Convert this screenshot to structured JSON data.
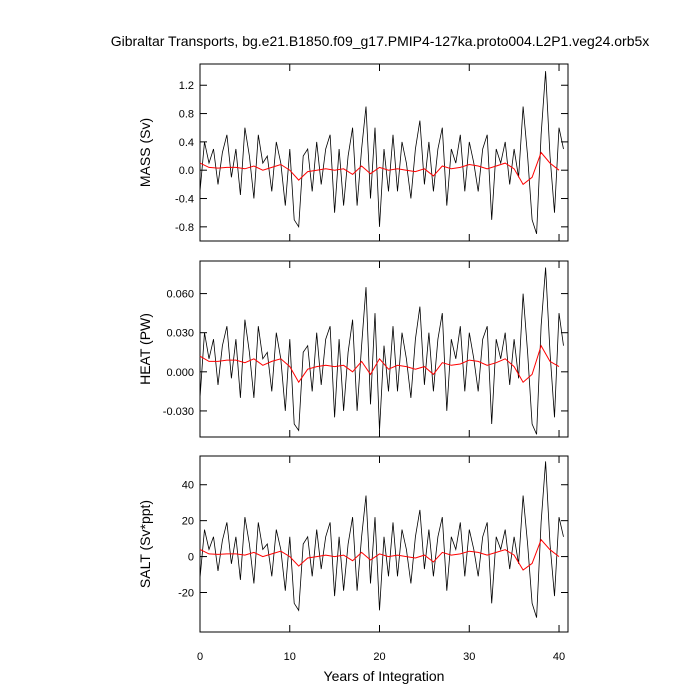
{
  "chart_data": {
    "title": "Gibraltar Transports, bg.e21.B1850.f09_g17.PMIP4-127ka.proto004.L2P1.veg24.orb5x",
    "type": "line",
    "xlabel": "Years of Integration",
    "xlim": [
      0,
      41
    ],
    "xticks": [
      "0",
      "10",
      "20",
      "30",
      "40"
    ],
    "colors": {
      "raw": "#000000",
      "smoothed": "#ff0000"
    },
    "panels": [
      {
        "ylabel": "MASS (Sv)",
        "ylim": [
          -1.0,
          1.5
        ],
        "yticks": [
          "1.2",
          "0.8",
          "0.4",
          "0.0",
          "-0.4",
          "-0.8"
        ],
        "x": [
          0,
          0.5,
          1,
          1.5,
          2,
          2.5,
          3,
          3.5,
          4,
          4.5,
          5,
          5.5,
          6,
          6.5,
          7,
          7.5,
          8,
          8.5,
          9,
          9.5,
          10,
          10.5,
          11,
          11.5,
          12,
          12.5,
          13,
          13.5,
          14,
          14.5,
          15,
          15.5,
          16,
          16.5,
          17,
          17.5,
          18,
          18.5,
          19,
          19.5,
          20,
          20.5,
          21,
          21.5,
          22,
          22.5,
          23,
          23.5,
          24,
          24.5,
          25,
          25.5,
          26,
          26.5,
          27,
          27.5,
          28,
          28.5,
          29,
          29.5,
          30,
          30.5,
          31,
          31.5,
          32,
          32.5,
          33,
          33.5,
          34,
          34.5,
          35,
          35.5,
          36,
          36.5,
          37,
          37.5,
          38,
          38.5,
          39,
          39.5,
          40,
          40.5
        ],
        "values": [
          -0.3,
          0.4,
          0.1,
          0.3,
          -0.2,
          0.25,
          0.5,
          -0.1,
          0.3,
          -0.35,
          0.6,
          0.2,
          -0.4,
          0.5,
          0.1,
          0.2,
          -0.3,
          0.4,
          0.1,
          -0.5,
          0.3,
          -0.7,
          -0.8,
          0.2,
          0.3,
          -0.3,
          0.4,
          -0.2,
          0.3,
          0.5,
          -0.6,
          0.3,
          -0.5,
          0.2,
          0.6,
          -0.5,
          0.3,
          0.9,
          -0.4,
          0.6,
          -0.8,
          0.3,
          -0.3,
          0.5,
          -0.3,
          0.4,
          0.1,
          -0.4,
          0.3,
          0.7,
          -0.2,
          0.4,
          -0.3,
          0.3,
          0.6,
          -0.5,
          0.3,
          0.1,
          0.5,
          -0.3,
          0.4,
          0.1,
          -0.3,
          0.3,
          0.5,
          -0.7,
          0.3,
          0.1,
          0.4,
          -0.2,
          0.3,
          -0.1,
          0.9,
          0.2,
          -0.7,
          -0.9,
          0.5,
          1.4,
          0.2,
          -0.6,
          0.6,
          0.3
        ],
        "smooth_x": [
          0,
          1,
          2,
          3,
          4,
          5,
          6,
          7,
          8,
          9,
          10,
          11,
          12,
          13,
          14,
          15,
          16,
          17,
          18,
          19,
          20,
          21,
          22,
          23,
          24,
          25,
          26,
          27,
          28,
          29,
          30,
          31,
          32,
          33,
          34,
          35,
          36,
          37,
          38,
          39,
          40
        ],
        "smooth": [
          0.1,
          0.04,
          0.03,
          0.04,
          0.04,
          0.02,
          0.06,
          0.0,
          0.04,
          0.08,
          0.0,
          -0.14,
          -0.02,
          0.0,
          0.02,
          0.0,
          0.02,
          -0.06,
          0.06,
          -0.05,
          0.04,
          0.0,
          0.02,
          0.0,
          -0.02,
          0.02,
          -0.08,
          0.06,
          0.02,
          0.04,
          0.08,
          0.06,
          0.02,
          0.06,
          0.1,
          0.02,
          -0.2,
          -0.1,
          0.25,
          0.1,
          0.0
        ]
      },
      {
        "ylabel": "HEAT (PW)",
        "ylim": [
          -0.05,
          0.085
        ],
        "yticks": [
          "0.060",
          "0.030",
          "0.000",
          "-0.030"
        ],
        "x": [
          0,
          0.5,
          1,
          1.5,
          2,
          2.5,
          3,
          3.5,
          4,
          4.5,
          5,
          5.5,
          6,
          6.5,
          7,
          7.5,
          8,
          8.5,
          9,
          9.5,
          10,
          10.5,
          11,
          11.5,
          12,
          12.5,
          13,
          13.5,
          14,
          14.5,
          15,
          15.5,
          16,
          16.5,
          17,
          17.5,
          18,
          18.5,
          19,
          19.5,
          20,
          20.5,
          21,
          21.5,
          22,
          22.5,
          23,
          23.5,
          24,
          24.5,
          25,
          25.5,
          26,
          26.5,
          27,
          27.5,
          28,
          28.5,
          29,
          29.5,
          30,
          30.5,
          31,
          31.5,
          32,
          32.5,
          33,
          33.5,
          34,
          34.5,
          35,
          35.5,
          36,
          36.5,
          37,
          37.5,
          38,
          38.5,
          39,
          39.5,
          40,
          40.5
        ],
        "values": [
          -0.02,
          0.03,
          0.01,
          0.025,
          -0.01,
          0.02,
          0.035,
          -0.005,
          0.025,
          -0.02,
          0.04,
          0.015,
          -0.02,
          0.035,
          0.01,
          0.015,
          -0.015,
          0.03,
          0.01,
          -0.03,
          0.025,
          -0.04,
          -0.045,
          0.015,
          0.02,
          -0.015,
          0.03,
          -0.01,
          0.025,
          0.035,
          -0.035,
          0.025,
          -0.03,
          0.015,
          0.04,
          -0.03,
          0.02,
          0.065,
          -0.025,
          0.045,
          -0.045,
          0.02,
          -0.015,
          0.035,
          -0.015,
          0.03,
          0.01,
          -0.02,
          0.025,
          0.05,
          -0.01,
          0.03,
          -0.015,
          0.025,
          0.045,
          -0.03,
          0.025,
          0.01,
          0.035,
          -0.015,
          0.03,
          0.01,
          -0.015,
          0.025,
          0.035,
          -0.04,
          0.025,
          0.01,
          0.03,
          -0.01,
          0.025,
          -0.005,
          0.06,
          0.015,
          -0.04,
          -0.048,
          0.035,
          0.08,
          0.015,
          -0.035,
          0.045,
          0.02
        ],
        "smooth_x": [
          0,
          1,
          2,
          3,
          4,
          5,
          6,
          7,
          8,
          9,
          10,
          11,
          12,
          13,
          14,
          15,
          16,
          17,
          18,
          19,
          20,
          21,
          22,
          23,
          24,
          25,
          26,
          27,
          28,
          29,
          30,
          31,
          32,
          33,
          34,
          35,
          36,
          37,
          38,
          39,
          40
        ],
        "smooth": [
          0.012,
          0.008,
          0.008,
          0.009,
          0.009,
          0.007,
          0.01,
          0.005,
          0.008,
          0.01,
          0.004,
          -0.008,
          0.002,
          0.004,
          0.005,
          0.004,
          0.005,
          0.0,
          0.008,
          -0.002,
          0.01,
          0.002,
          0.005,
          0.004,
          0.002,
          0.004,
          -0.002,
          0.007,
          0.005,
          0.006,
          0.009,
          0.008,
          0.005,
          0.007,
          0.01,
          0.004,
          -0.008,
          -0.002,
          0.02,
          0.008,
          0.004
        ]
      },
      {
        "ylabel": "SALT (Sv*ppt)",
        "ylim": [
          -42,
          56
        ],
        "yticks": [
          "40",
          "20",
          "0",
          "-20"
        ],
        "x": [
          0,
          0.5,
          1,
          1.5,
          2,
          2.5,
          3,
          3.5,
          4,
          4.5,
          5,
          5.5,
          6,
          6.5,
          7,
          7.5,
          8,
          8.5,
          9,
          9.5,
          10,
          10.5,
          11,
          11.5,
          12,
          12.5,
          13,
          13.5,
          14,
          14.5,
          15,
          15.5,
          16,
          16.5,
          17,
          17.5,
          18,
          18.5,
          19,
          19.5,
          20,
          20.5,
          21,
          21.5,
          22,
          22.5,
          23,
          23.5,
          24,
          24.5,
          25,
          25.5,
          26,
          26.5,
          27,
          27.5,
          28,
          28.5,
          29,
          29.5,
          30,
          30.5,
          31,
          31.5,
          32,
          32.5,
          33,
          33.5,
          34,
          34.5,
          35,
          35.5,
          36,
          36.5,
          37,
          37.5,
          38,
          38.5,
          39,
          39.5,
          40,
          40.5
        ],
        "values": [
          -12,
          15,
          4,
          11,
          -8,
          9,
          19,
          -4,
          11,
          -13,
          22,
          7,
          -15,
          19,
          4,
          7,
          -11,
          15,
          4,
          -19,
          11,
          -26,
          -30,
          7,
          11,
          -11,
          15,
          -7,
          11,
          19,
          -22,
          11,
          -19,
          7,
          22,
          -19,
          11,
          34,
          -15,
          22,
          -30,
          11,
          -11,
          19,
          -11,
          15,
          4,
          -15,
          11,
          26,
          -7,
          15,
          -11,
          11,
          22,
          -19,
          11,
          4,
          19,
          -11,
          15,
          4,
          -11,
          11,
          19,
          -26,
          11,
          4,
          15,
          -7,
          11,
          -4,
          34,
          7,
          -26,
          -34,
          19,
          53,
          7,
          -22,
          22,
          11
        ],
        "smooth_x": [
          0,
          1,
          2,
          3,
          4,
          5,
          6,
          7,
          8,
          9,
          10,
          11,
          12,
          13,
          14,
          15,
          16,
          17,
          18,
          19,
          20,
          21,
          22,
          23,
          24,
          25,
          26,
          27,
          28,
          29,
          30,
          31,
          32,
          33,
          34,
          35,
          36,
          37,
          38,
          39,
          40
        ],
        "smooth": [
          4,
          1.5,
          1.2,
          1.5,
          1.5,
          0.8,
          2.3,
          0.0,
          1.5,
          3.0,
          0.0,
          -5.3,
          -0.8,
          0.0,
          0.8,
          0.0,
          0.8,
          -2.3,
          2.3,
          -1.9,
          1.5,
          0.0,
          0.8,
          0.0,
          -0.8,
          0.8,
          -3.0,
          2.3,
          0.8,
          1.5,
          3.0,
          2.3,
          0.8,
          2.3,
          3.8,
          0.8,
          -7.5,
          -3.8,
          9.4,
          3.8,
          0.0
        ]
      }
    ]
  }
}
